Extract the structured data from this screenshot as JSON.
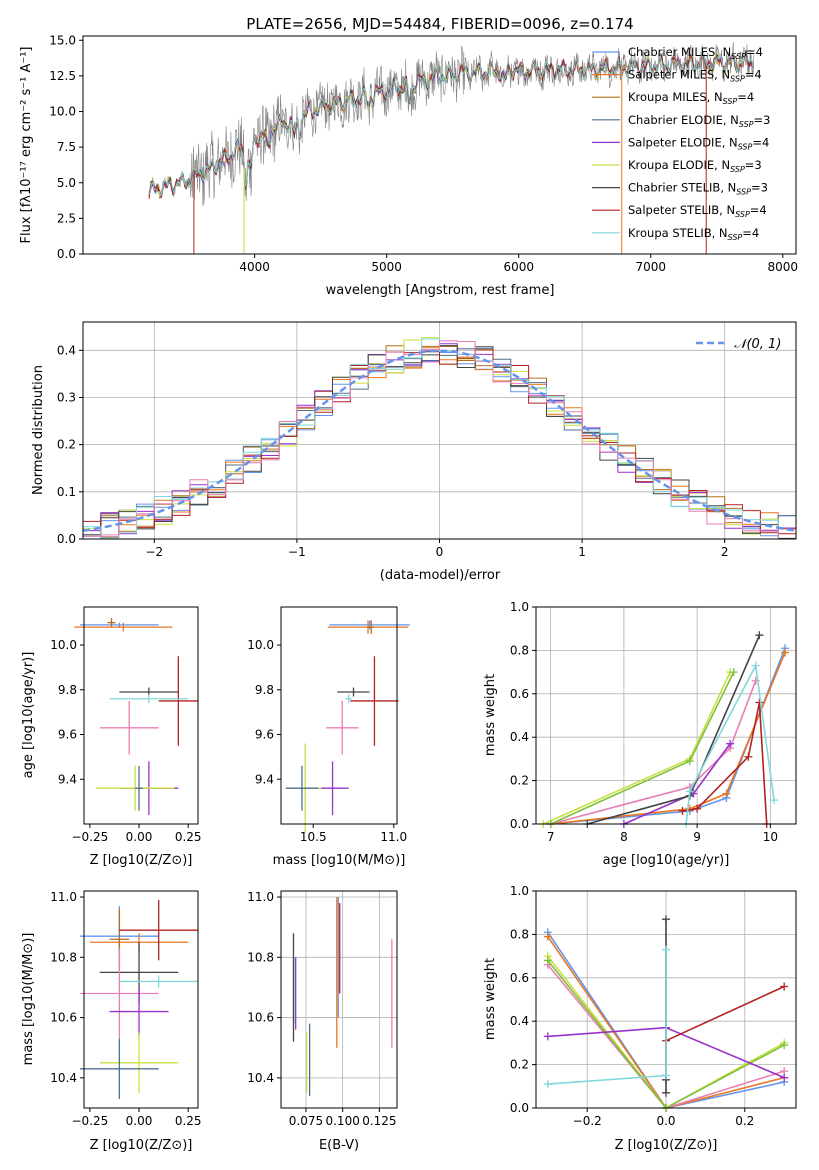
{
  "figure": {
    "title": "PLATE=2656, MJD=54484, FIBERID=0096, z=0.174"
  },
  "colors": {
    "chabrier_miles": "#6495ed",
    "salpeter_miles": "#e87722",
    "kroupa_miles": "#b07020",
    "chabrier_elodie": "#4f6f8f",
    "salpeter_elodie": "#9932cc",
    "kroupa_elodie": "#c8e040",
    "chabrier_stelib": "#444444",
    "salpeter_stelib": "#b22222",
    "kroupa_stelib": "#80d8dc",
    "pink": "#e87fb4",
    "green": "#80c040",
    "data": "#808080",
    "gauss": "#6495ed"
  },
  "chart_data": [
    {
      "type": "line",
      "panel": "spectrum",
      "title": "PLATE=2656, MJD=54484, FIBERID=0096, z=0.174",
      "xlabel": "wavelength [Angstrom, rest frame]",
      "ylabel": "Flux [fλ10⁻¹⁷ erg cm⁻² s⁻¹ A⁻¹]",
      "xlim": [
        2700,
        8100
      ],
      "ylim": [
        0,
        15.3
      ],
      "xticks": [
        4000,
        5000,
        6000,
        7000,
        8000
      ],
      "yticks": [
        0.0,
        2.5,
        5.0,
        7.5,
        10.0,
        12.5,
        15.0
      ],
      "legend_position": "top-right",
      "legend": [
        "Chabrier MILES, N_SSP=4",
        "Salpeter MILES, N_SSP=4",
        "Kroupa MILES, N_SSP=4",
        "Chabrier ELODIE, N_SSP=3",
        "Salpeter ELODIE, N_SSP=4",
        "Kroupa ELODIE, N_SSP=3",
        "Chabrier STELIB, N_SSP=3",
        "Salpeter STELIB, N_SSP=4",
        "Kroupa STELIB, N_SSP=4"
      ],
      "continuum": {
        "x": [
          3200,
          3500,
          3700,
          3900,
          4100,
          4300,
          4500,
          4800,
          5100,
          5400,
          5800,
          6200,
          6600,
          7000,
          7400,
          7800
        ],
        "y": [
          4.4,
          5.2,
          6.2,
          7.5,
          8.6,
          9.5,
          10.3,
          11.0,
          11.7,
          12.5,
          12.8,
          12.9,
          13.0,
          13.2,
          13.4,
          13.5
        ]
      }
    },
    {
      "type": "line",
      "panel": "residual_histogram",
      "xlabel": "(data-model)/error",
      "ylabel": "Normed distribution",
      "xlim": [
        -2.5,
        2.5
      ],
      "ylim": [
        0,
        0.46
      ],
      "xticks": [
        -2,
        -1,
        0,
        1,
        2
      ],
      "yticks": [
        0.0,
        0.1,
        0.2,
        0.3,
        0.4
      ],
      "legend": [
        "𝒩(0, 1)"
      ],
      "legend_position": "top-right",
      "bins": 40,
      "grid": true
    },
    {
      "type": "scatter",
      "panel": "age_vs_Z",
      "xlabel": "Z [log10(Z/Z⊙)]",
      "ylabel": "age [log10(age/yr)]",
      "xlim": [
        -0.28,
        0.3
      ],
      "ylim": [
        9.2,
        10.17
      ],
      "xticks": [
        -0.25,
        0.0,
        0.25
      ],
      "yticks": [
        9.4,
        9.6,
        9.8,
        10.0
      ],
      "points": [
        {
          "x": -0.1,
          "y": 10.09,
          "xerr": 0.2,
          "yerr": 0.01,
          "color": "chabrier_miles"
        },
        {
          "x": -0.08,
          "y": 10.08,
          "xerr": 0.25,
          "yerr": 0.02,
          "color": "salpeter_miles"
        },
        {
          "x": -0.14,
          "y": 10.1,
          "xerr": 0.02,
          "yerr": 0.02,
          "color": "kroupa_miles"
        },
        {
          "x": 0.05,
          "y": 9.79,
          "xerr": 0.15,
          "yerr": 0.02,
          "color": "chabrier_stelib"
        },
        {
          "x": 0.2,
          "y": 9.75,
          "xerr": 0.1,
          "yerr": 0.2,
          "color": "salpeter_stelib"
        },
        {
          "x": 0.05,
          "y": 9.76,
          "xerr": 0.2,
          "yerr": 0.02,
          "color": "kroupa_stelib"
        },
        {
          "x": -0.05,
          "y": 9.63,
          "xerr": 0.15,
          "yerr": 0.12,
          "color": "pink"
        },
        {
          "x": 0.05,
          "y": 9.36,
          "xerr": 0.15,
          "yerr": 0.12,
          "color": "salpeter_elodie"
        },
        {
          "x": -0.02,
          "y": 9.36,
          "xerr": 0.2,
          "yerr": 0.1,
          "color": "kroupa_elodie"
        },
        {
          "x": 0.0,
          "y": 9.36,
          "xerr": 0.02,
          "yerr": 0.1,
          "color": "chabrier_elodie"
        }
      ]
    },
    {
      "type": "scatter",
      "panel": "age_vs_mass",
      "xlabel": "mass [log10(M/M⊙)]",
      "ylabel": "",
      "xlim": [
        10.3,
        11.02
      ],
      "ylim": [
        9.2,
        10.17
      ],
      "xticks": [
        10.5,
        11.0
      ],
      "yticks": [
        9.4,
        9.6,
        9.8,
        10.0
      ],
      "points": [
        {
          "x": 10.85,
          "y": 10.09,
          "xerr": 0.25,
          "yerr": 0.02,
          "color": "chabrier_miles"
        },
        {
          "x": 10.84,
          "y": 10.08,
          "xerr": 0.25,
          "yerr": 0.03,
          "color": "salpeter_miles"
        },
        {
          "x": 10.86,
          "y": 10.08,
          "xerr": 0.02,
          "yerr": 0.03,
          "color": "kroupa_miles"
        },
        {
          "x": 10.75,
          "y": 9.79,
          "xerr": 0.1,
          "yerr": 0.02,
          "color": "chabrier_stelib"
        },
        {
          "x": 10.88,
          "y": 9.75,
          "xerr": 0.15,
          "yerr": 0.2,
          "color": "salpeter_stelib"
        },
        {
          "x": 10.72,
          "y": 9.76,
          "xerr": 0.02,
          "yerr": 0.02,
          "color": "kroupa_stelib"
        },
        {
          "x": 10.68,
          "y": 9.63,
          "xerr": 0.1,
          "yerr": 0.12,
          "color": "pink"
        },
        {
          "x": 10.62,
          "y": 9.36,
          "xerr": 0.1,
          "yerr": 0.12,
          "color": "salpeter_elodie"
        },
        {
          "x": 10.45,
          "y": 9.36,
          "xerr": 0.1,
          "yerr": 0.2,
          "color": "kroupa_elodie"
        },
        {
          "x": 10.43,
          "y": 9.36,
          "xerr": 0.1,
          "yerr": 0.1,
          "color": "chabrier_elodie"
        }
      ]
    },
    {
      "type": "line",
      "panel": "mass_weight_vs_age",
      "xlabel": "age [log10(age/yr)]",
      "ylabel": "mass weight",
      "xlim": [
        6.8,
        10.35
      ],
      "ylim": [
        0,
        1.0
      ],
      "xticks": [
        7,
        8,
        9,
        10
      ],
      "yticks": [
        0.0,
        0.2,
        0.4,
        0.6,
        0.8,
        1.0
      ],
      "grid": true,
      "series": [
        {
          "color": "chabrier_miles",
          "x": [
            7.0,
            8.9,
            9.4,
            10.2
          ],
          "y": [
            0.0,
            0.06,
            0.12,
            0.81
          ]
        },
        {
          "color": "salpeter_miles",
          "x": [
            7.0,
            8.9,
            9.4,
            10.2
          ],
          "y": [
            0.0,
            0.07,
            0.14,
            0.79
          ]
        },
        {
          "color": "pink",
          "x": [
            7.0,
            8.9,
            9.45,
            9.8
          ],
          "y": [
            0.0,
            0.17,
            0.35,
            0.66
          ]
        },
        {
          "color": "salpeter_elodie",
          "x": [
            8.0,
            8.95,
            9.45
          ],
          "y": [
            0.0,
            0.14,
            0.37
          ]
        },
        {
          "color": "kroupa_elodie",
          "x": [
            6.9,
            8.9,
            9.45
          ],
          "y": [
            0.0,
            0.3,
            0.7
          ]
        },
        {
          "color": "green",
          "x": [
            7.0,
            8.9,
            9.5
          ],
          "y": [
            0.0,
            0.29,
            0.7
          ]
        },
        {
          "color": "chabrier_stelib",
          "x": [
            7.5,
            8.9,
            9.85
          ],
          "y": [
            0.0,
            0.13,
            0.87
          ]
        },
        {
          "color": "salpeter_stelib",
          "x": [
            8.8,
            9.0,
            9.7,
            9.85,
            9.95
          ],
          "y": [
            0.06,
            0.07,
            0.31,
            0.56,
            0.0
          ]
        },
        {
          "color": "kroupa_stelib",
          "x": [
            8.85,
            8.9,
            9.8,
            10.05
          ],
          "y": [
            0.0,
            0.15,
            0.73,
            0.11
          ]
        }
      ]
    },
    {
      "type": "scatter",
      "panel": "mass_vs_Z",
      "xlabel": "Z [log10(Z/Z⊙)]",
      "ylabel": "mass [log10(M/M⊙)]",
      "xlim": [
        -0.28,
        0.3
      ],
      "ylim": [
        10.3,
        11.02
      ],
      "xticks": [
        -0.25,
        0.0,
        0.25
      ],
      "yticks": [
        10.4,
        10.6,
        10.8,
        11.0
      ],
      "points": [
        {
          "x": -0.1,
          "y": 10.87,
          "xerr": 0.2,
          "yerr": 0.1,
          "color": "chabrier_miles"
        },
        {
          "x": 0.0,
          "y": 10.85,
          "xerr": 0.25,
          "yerr": 0.03,
          "color": "salpeter_miles"
        },
        {
          "x": -0.1,
          "y": 10.86,
          "xerr": 0.05,
          "yerr": 0.1,
          "color": "kroupa_miles"
        },
        {
          "x": 0.0,
          "y": 10.75,
          "xerr": 0.2,
          "yerr": 0.1,
          "color": "chabrier_stelib"
        },
        {
          "x": 0.1,
          "y": 10.89,
          "xerr": 0.2,
          "yerr": 0.1,
          "color": "salpeter_stelib"
        },
        {
          "x": 0.1,
          "y": 10.72,
          "xerr": 0.2,
          "yerr": 0.02,
          "color": "kroupa_stelib"
        },
        {
          "x": -0.1,
          "y": 10.68,
          "xerr": 0.2,
          "yerr": 0.15,
          "color": "pink"
        },
        {
          "x": 0.0,
          "y": 10.62,
          "xerr": 0.15,
          "yerr": 0.08,
          "color": "salpeter_elodie"
        },
        {
          "x": 0.0,
          "y": 10.45,
          "xerr": 0.2,
          "yerr": 0.1,
          "color": "kroupa_elodie"
        },
        {
          "x": -0.1,
          "y": 10.43,
          "xerr": 0.2,
          "yerr": 0.1,
          "color": "chabrier_elodie"
        }
      ]
    },
    {
      "type": "scatter",
      "panel": "mass_vs_ebv",
      "xlabel": "E(B-V)",
      "ylabel": "",
      "xlim": [
        0.058,
        0.137
      ],
      "ylim": [
        10.3,
        11.02
      ],
      "xticks": [
        0.075,
        0.1,
        0.125
      ],
      "yticks": [
        10.4,
        10.6,
        10.8,
        11.0
      ],
      "grid": true,
      "points": [
        {
          "x": 0.0665,
          "y": 10.7,
          "yerr": 0.18,
          "color": "chabrier_stelib"
        },
        {
          "x": 0.0675,
          "y": 10.69,
          "yerr": 0.11,
          "color": "kroupa_stelib"
        },
        {
          "x": 0.068,
          "y": 10.68,
          "yerr": 0.12,
          "color": "salpeter_elodie"
        },
        {
          "x": 0.0755,
          "y": 10.45,
          "yerr": 0.1,
          "color": "kroupa_elodie"
        },
        {
          "x": 0.0775,
          "y": 10.46,
          "yerr": 0.12,
          "color": "chabrier_elodie"
        },
        {
          "x": 0.096,
          "y": 10.75,
          "yerr": 0.25,
          "color": "salpeter_miles"
        },
        {
          "x": 0.097,
          "y": 10.8,
          "yerr": 0.2,
          "color": "chabrier_miles"
        },
        {
          "x": 0.098,
          "y": 10.83,
          "yerr": 0.15,
          "color": "salpeter_stelib"
        },
        {
          "x": 0.1335,
          "y": 10.68,
          "yerr": 0.18,
          "color": "pink"
        }
      ]
    },
    {
      "type": "line",
      "panel": "mass_weight_vs_Z",
      "xlabel": "Z [log10(Z/Z⊙)]",
      "ylabel": "mass weight",
      "xlim": [
        -0.33,
        0.33
      ],
      "ylim": [
        0,
        1.0
      ],
      "xticks": [
        -0.2,
        0.0,
        0.2
      ],
      "yticks": [
        0.0,
        0.2,
        0.4,
        0.6,
        0.8,
        1.0
      ],
      "grid": true,
      "series": [
        {
          "color": "chabrier_miles",
          "x": [
            -0.3,
            0.0,
            0.3
          ],
          "y": [
            0.81,
            0.0,
            0.12
          ]
        },
        {
          "color": "salpeter_miles",
          "x": [
            -0.3,
            0.0,
            0.3
          ],
          "y": [
            0.79,
            0.0,
            0.14
          ]
        },
        {
          "color": "pink",
          "x": [
            -0.3,
            0.0,
            0.3
          ],
          "y": [
            0.66,
            0.0,
            0.17
          ]
        },
        {
          "color": "kroupa_elodie",
          "x": [
            -0.3,
            0.0,
            0.3
          ],
          "y": [
            0.7,
            0.0,
            0.3
          ]
        },
        {
          "color": "green",
          "x": [
            -0.3,
            0.0,
            0.3
          ],
          "y": [
            0.68,
            0.0,
            0.29
          ]
        },
        {
          "color": "salpeter_elodie",
          "x": [
            -0.3,
            0.0,
            0.3
          ],
          "y": [
            0.33,
            0.37,
            0.14
          ]
        },
        {
          "color": "chabrier_stelib",
          "x": [
            0.0,
            0.0,
            0.0
          ],
          "y": [
            0.87,
            0.07,
            0.13
          ]
        },
        {
          "color": "salpeter_stelib",
          "x": [
            0.0,
            0.3
          ],
          "y": [
            0.31,
            0.56
          ]
        },
        {
          "color": "kroupa_stelib",
          "x": [
            -0.3,
            0.0,
            0.0
          ],
          "y": [
            0.11,
            0.15,
            0.73
          ]
        }
      ]
    }
  ]
}
